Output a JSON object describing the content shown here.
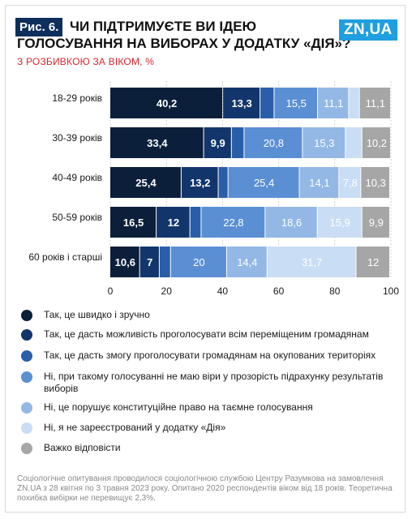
{
  "header": {
    "figure_tag": "Рис. 6.",
    "title_line1": "ЧИ ПІДТРИМУЄТЕ ВИ ІДЕЮ",
    "title_line2": "ГОЛОСУВАННЯ НА ВИБОРАХ У ДОДАТКУ «ДІЯ»?",
    "subtitle": "З РОЗБИВКОЮ ЗА ВІКОМ, %",
    "logo": "ZN,UA"
  },
  "chart_data": {
    "type": "bar",
    "orientation": "horizontal",
    "stacked": true,
    "title": "ЧИ ПІДТРИМУЄТЕ ВИ ІДЕЮ ГОЛОСУВАННЯ НА ВИБОРАХ У ДОДАТКУ «ДІЯ»?",
    "subtitle": "З РОЗБИВКОЮ ЗА ВІКОМ, %",
    "categories": [
      "18-29 років",
      "30-39 років",
      "40-49 років",
      "50-59 років",
      "60 років і старші"
    ],
    "xlim": [
      0,
      100
    ],
    "xticks": [
      0,
      20,
      40,
      60,
      80,
      100
    ],
    "grid": true,
    "legend_position": "bottom",
    "series": [
      {
        "name": "Так, це швидко і зручно",
        "color": "#0b1f3a",
        "values": [
          40.2,
          33.4,
          25.4,
          16.5,
          10.6
        ],
        "labels": [
          "40,2",
          "33,4",
          "25,4",
          "16,5",
          "10,6"
        ]
      },
      {
        "name": "Так, це дасть можливість проголосувати всім переміщеним громадянам",
        "color": "#12366b",
        "values": [
          13.3,
          9.9,
          13.2,
          12,
          7
        ],
        "labels": [
          "13,3",
          "9,9",
          "13,2",
          "12",
          "7"
        ]
      },
      {
        "name": "Так, це дасть змогу проголосувати громадянам на окупованих територіях",
        "color": "#2a5ea8",
        "values": [
          5,
          4.5,
          3.5,
          4,
          4
        ],
        "labels": [
          "",
          "",
          "",
          "",
          ""
        ]
      },
      {
        "name": "Ні, при такому голосуванні не маю віри у прозорість підрахунку результатів виборів",
        "color": "#5b8fd4",
        "values": [
          15.5,
          20.8,
          25.4,
          22.8,
          20
        ],
        "labels": [
          "15,5",
          "20,8",
          "25,4",
          "22,8",
          "20"
        ]
      },
      {
        "name": "Ні, це порушує конституційне право на таємне голосування",
        "color": "#93b8e6",
        "values": [
          11.1,
          15.3,
          14.1,
          18.6,
          14.4
        ],
        "labels": [
          "11,1",
          "15,3",
          "14,1",
          "18,6",
          "14,4"
        ]
      },
      {
        "name": "Ні, я не зареєстрований у додатку «Дія»",
        "color": "#c9ddf4",
        "values": [
          3.8,
          5.9,
          7.8,
          15.9,
          31.7
        ],
        "labels": [
          "",
          "",
          "7,8",
          "15,9",
          "31,7"
        ]
      },
      {
        "name": "Важко відповісти",
        "color": "#a6a6a6",
        "values": [
          11.1,
          10.2,
          10.3,
          9.9,
          12
        ],
        "labels": [
          "11,1",
          "10,2",
          "10,3",
          "9,9",
          "12"
        ]
      }
    ]
  },
  "footnote": "Соціологічне опитування проводилося соціологічною службою Центру Разумкова на замовлення ZN.UA з 28 квітня по 3 травня 2023 року. Опитано 2020 респондентів віком від 18 років. Теоретична похибка вибірки не перевищує 2,3%."
}
